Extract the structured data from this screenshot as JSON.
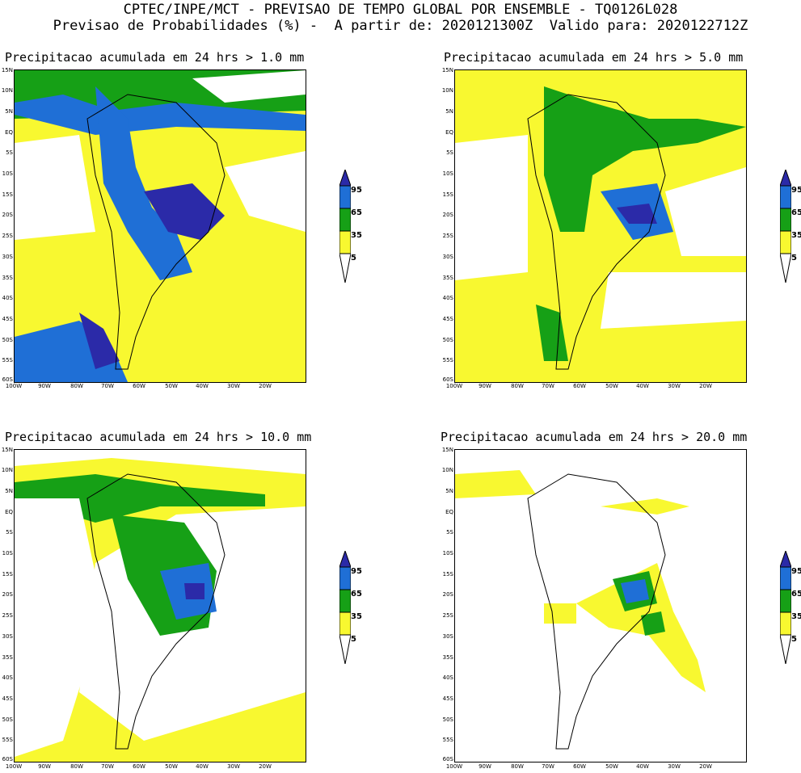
{
  "header": {
    "line1": "CPTEC/INPE/MCT - PREVISAO DE TEMPO GLOBAL POR ENSEMBLE - TQ0126L028",
    "line2": "Previsao de Probabilidades (%) -  A partir de: 2020121300Z  Valido para: 2020122712Z"
  },
  "panels": [
    {
      "title": "Precipitacao acumulada em 24 hrs > 1.0 mm"
    },
    {
      "title": "Precipitacao acumulada em 24 hrs > 5.0 mm"
    },
    {
      "title": "Precipitacao acumulada em 24 hrs > 10.0 mm"
    },
    {
      "title": "Precipitacao acumulada em 24 hrs > 20.0 mm"
    }
  ],
  "axes": {
    "lat_labels": [
      "15N",
      "10N",
      "5N",
      "EQ",
      "5S",
      "10S",
      "15S",
      "20S",
      "25S",
      "30S",
      "35S",
      "40S",
      "45S",
      "50S",
      "55S",
      "60S"
    ],
    "lon_labels": [
      "100W",
      "90W",
      "80W",
      "70W",
      "60W",
      "50W",
      "40W",
      "30W",
      "20W"
    ]
  },
  "legend": {
    "labels": [
      "95",
      "65",
      "35",
      "5"
    ],
    "colors": {
      "c95": "#2b2aa8",
      "c65": "#1f6fd6",
      "c35": "#16a016",
      "c5": "#f8f830"
    }
  }
}
